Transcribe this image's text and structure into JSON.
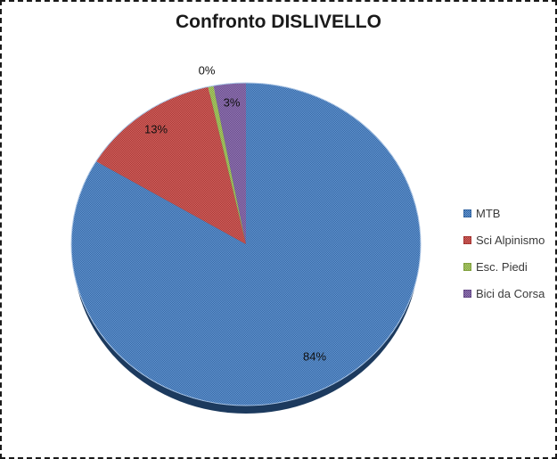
{
  "window": {
    "background_color": "#FFFFFF",
    "border_color": "#1A1A1A"
  },
  "chart_data": {
    "type": "pie",
    "title": "Confronto DISLIVELLO",
    "categories": [
      "MTB",
      "Sci Alpinismo",
      "Esc. Piedi",
      "Bici da Corsa"
    ],
    "values": [
      84,
      13,
      0,
      3
    ],
    "unit": "%",
    "data_labels": [
      "84%",
      "13%",
      "0%",
      "3%"
    ],
    "colors": [
      "#4F81BD",
      "#C0504D",
      "#9BBB59",
      "#8064A2"
    ],
    "shadow_color": "#1C3A5E",
    "legend_position": "right",
    "start_angle_deg": 0,
    "direction": "clockwise",
    "legend": {
      "entries": [
        "MTB",
        "Sci Alpinismo",
        "Esc. Piedi",
        "Bici da Corsa"
      ]
    }
  }
}
